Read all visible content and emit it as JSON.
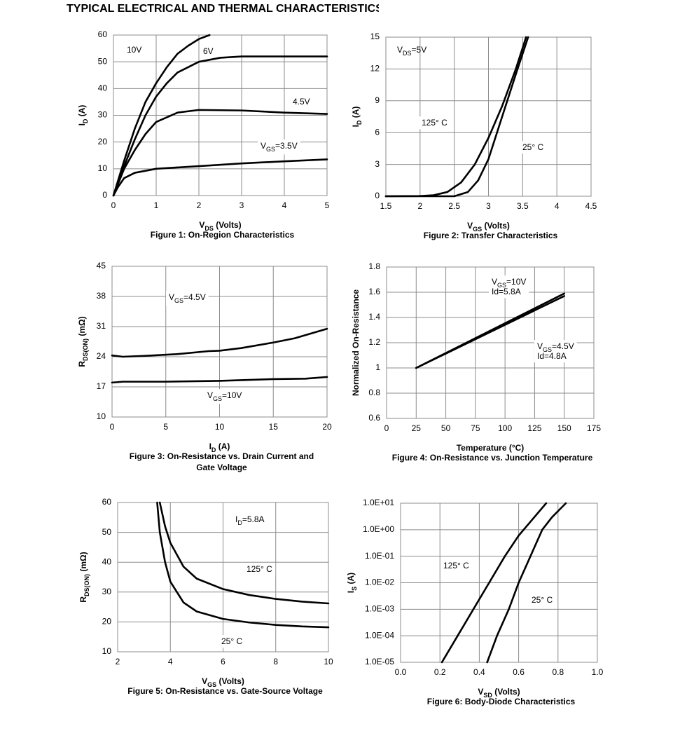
{
  "page_title": "TYPICAL ELECTRICAL AND THERMAL CHARACTERISTICS",
  "chart_data": [
    {
      "type": "line",
      "caption": [
        "Figure 1: On-Region Characteristics"
      ],
      "xlabel": [
        {
          "text": "V"
        },
        {
          "text": "DS",
          "sub": true
        },
        {
          "text": " (Volts)"
        }
      ],
      "ylabel": [
        {
          "text": "I"
        },
        {
          "text": "D",
          "sub": true
        },
        {
          "text": " (A)"
        }
      ],
      "xlim": [
        0,
        5
      ],
      "xticks": [
        0,
        1,
        2,
        3,
        4,
        5
      ],
      "ylim": [
        0,
        60
      ],
      "yticks": [
        0,
        10,
        20,
        30,
        40,
        50,
        60
      ],
      "grid": true,
      "series": [
        {
          "color": "#000000",
          "x": [
            0,
            0.25,
            0.5,
            0.75,
            1,
            1.25,
            1.5,
            1.75,
            2,
            2.25
          ],
          "values": [
            0,
            13,
            25,
            35,
            42,
            48,
            53,
            56,
            58.5,
            60
          ]
        },
        {
          "color": "#000000",
          "x": [
            0,
            0.25,
            0.5,
            0.75,
            1,
            1.25,
            1.5,
            2,
            2.5,
            3,
            4,
            5
          ],
          "values": [
            0,
            11,
            21,
            30,
            37,
            42,
            46,
            50,
            51.5,
            52,
            52,
            52
          ]
        },
        {
          "color": "#000000",
          "x": [
            0,
            0.25,
            0.5,
            0.75,
            1,
            1.5,
            2,
            3,
            4,
            5
          ],
          "values": [
            0,
            10,
            17,
            23,
            27.5,
            31,
            32,
            31.8,
            31,
            30.5
          ]
        },
        {
          "color": "#000000",
          "x": [
            0,
            0.1,
            0.25,
            0.5,
            1,
            2,
            3,
            4,
            5
          ],
          "values": [
            0,
            3,
            6.5,
            8.5,
            10,
            11,
            12,
            12.8,
            13.5
          ]
        }
      ],
      "annotations": [
        {
          "lines": [
            [
              {
                "text": "10V"
              }
            ]
          ]
        },
        {
          "lines": [
            [
              {
                "text": "6V"
              }
            ]
          ]
        },
        {
          "lines": [
            [
              {
                "text": "4.5V"
              }
            ]
          ]
        },
        {
          "lines": [
            [
              {
                "text": "V"
              },
              {
                "text": "GS",
                "sub": true
              },
              {
                "text": "=3.5V"
              }
            ]
          ]
        }
      ]
    },
    {
      "type": "line",
      "caption": [
        "Figure 2: Transfer Characteristics"
      ],
      "xlabel": [
        {
          "text": "V"
        },
        {
          "text": "GS",
          "sub": true
        },
        {
          "text": " (Volts)"
        }
      ],
      "ylabel": [
        {
          "text": "I"
        },
        {
          "text": "D",
          "sub": true
        },
        {
          "text": " (A)"
        }
      ],
      "xlim": [
        1.5,
        4.5
      ],
      "xticks": [
        1.5,
        2,
        2.5,
        3,
        3.5,
        4,
        4.5
      ],
      "ylim": [
        0,
        15
      ],
      "yticks": [
        0,
        3,
        6,
        9,
        12,
        15
      ],
      "grid": true,
      "series": [
        {
          "color": "#000000",
          "x": [
            1.5,
            2,
            2.2,
            2.4,
            2.6,
            2.8,
            3,
            3.2,
            3.4,
            3.55
          ],
          "values": [
            0,
            0.02,
            0.1,
            0.4,
            1.3,
            3,
            5.5,
            8.5,
            12,
            15
          ]
        },
        {
          "color": "#000000",
          "x": [
            1.5,
            2.5,
            2.7,
            2.85,
            3,
            3.2,
            3.4,
            3.58
          ],
          "values": [
            0,
            0,
            0.4,
            1.5,
            3.5,
            7.5,
            11.5,
            15
          ]
        }
      ],
      "annotations": [
        {
          "lines": [
            [
              {
                "text": "V"
              },
              {
                "text": "DS",
                "sub": true
              },
              {
                "text": "=5V"
              }
            ]
          ]
        },
        {
          "lines": [
            [
              {
                "text": "125° C"
              }
            ]
          ]
        },
        {
          "lines": [
            [
              {
                "text": "25° C"
              }
            ]
          ]
        }
      ]
    },
    {
      "type": "line",
      "caption": [
        "Figure 3: On-Resistance vs. Drain Current and",
        "Gate Voltage"
      ],
      "xlabel": [
        {
          "text": "I"
        },
        {
          "text": "D",
          "sub": true
        },
        {
          "text": " (A)"
        }
      ],
      "ylabel": [
        {
          "text": "R"
        },
        {
          "text": "DS(ON)",
          "sub": true
        },
        {
          "text": " (mΩ)"
        }
      ],
      "xlim": [
        0,
        20
      ],
      "xticks": [
        0,
        5,
        10,
        15,
        20
      ],
      "ylim": [
        10,
        45
      ],
      "yticks": [
        10,
        17,
        24,
        31,
        38,
        45
      ],
      "grid": true,
      "series": [
        {
          "color": "#000000",
          "x": [
            0,
            1,
            3,
            6,
            9,
            10,
            12,
            15,
            17,
            20
          ],
          "values": [
            24.3,
            24,
            24.2,
            24.6,
            25.3,
            25.4,
            26,
            27.3,
            28.3,
            30.5
          ]
        },
        {
          "color": "#000000",
          "x": [
            0,
            1,
            5,
            10,
            15,
            18,
            20
          ],
          "values": [
            18,
            18.2,
            18.2,
            18.4,
            18.8,
            18.9,
            19.3
          ]
        }
      ],
      "annotations": [
        {
          "lines": [
            [
              {
                "text": "V"
              },
              {
                "text": "GS",
                "sub": true
              },
              {
                "text": "=4.5V"
              }
            ]
          ]
        },
        {
          "lines": [
            [
              {
                "text": "V"
              },
              {
                "text": "GS",
                "sub": true
              },
              {
                "text": "=10V"
              }
            ]
          ]
        }
      ]
    },
    {
      "type": "line",
      "caption": [
        "Figure 4: On-Resistance vs. Junction Temperature"
      ],
      "xlabel": [
        {
          "text": "Temperature (°C)"
        }
      ],
      "ylabel": [
        {
          "text": "Normalized On-Resistance"
        }
      ],
      "xlim": [
        0,
        175
      ],
      "xticks": [
        0,
        25,
        50,
        75,
        100,
        125,
        150,
        175
      ],
      "ylim": [
        0.6,
        1.8
      ],
      "yticks": [
        0.6,
        0.8,
        1,
        1.2,
        1.4,
        1.6,
        1.8
      ],
      "grid": true,
      "series": [
        {
          "color": "#000000",
          "x": [
            25,
            150
          ],
          "values": [
            1,
            1.59
          ]
        },
        {
          "color": "#000000",
          "x": [
            25,
            150
          ],
          "values": [
            1,
            1.57
          ]
        }
      ],
      "annotations": [
        {
          "lines": [
            [
              {
                "text": "V"
              },
              {
                "text": "GS",
                "sub": true
              },
              {
                "text": "=10V"
              }
            ],
            [
              {
                "text": "Id=5.8A"
              }
            ]
          ]
        },
        {
          "lines": [
            [
              {
                "text": "V"
              },
              {
                "text": "GS",
                "sub": true
              },
              {
                "text": "=4.5V"
              }
            ],
            [
              {
                "text": "Id=4.8A"
              }
            ]
          ]
        }
      ]
    },
    {
      "type": "line",
      "caption": [
        "Figure 5: On-Resistance vs. Gate-Source Voltage"
      ],
      "xlabel": [
        {
          "text": "V"
        },
        {
          "text": "GS",
          "sub": true
        },
        {
          "text": " (Volts)"
        }
      ],
      "ylabel": [
        {
          "text": "R"
        },
        {
          "text": "DS(ON)",
          "sub": true
        },
        {
          "text": " (mΩ)"
        }
      ],
      "xlim": [
        2,
        10
      ],
      "xticks": [
        2,
        4,
        6,
        8,
        10
      ],
      "ylim": [
        10,
        60
      ],
      "yticks": [
        10,
        20,
        30,
        40,
        50,
        60
      ],
      "grid": true,
      "series": [
        {
          "color": "#000000",
          "x": [
            3.6,
            3.8,
            4,
            4.5,
            5,
            6,
            7,
            8,
            9,
            10
          ],
          "values": [
            60,
            52,
            46.5,
            38.5,
            34.5,
            31,
            29,
            27.7,
            26.8,
            26.2
          ]
        },
        {
          "color": "#000000",
          "x": [
            3.5,
            3.6,
            3.8,
            4,
            4.5,
            5,
            6,
            7,
            8,
            9,
            10
          ],
          "values": [
            60,
            50,
            40,
            33.5,
            26.5,
            23.5,
            21,
            19.8,
            19,
            18.5,
            18.2
          ]
        }
      ],
      "annotations": [
        {
          "lines": [
            [
              {
                "text": "I"
              },
              {
                "text": "D",
                "sub": true
              },
              {
                "text": "=5.8A"
              }
            ]
          ]
        },
        {
          "lines": [
            [
              {
                "text": "125° C"
              }
            ]
          ]
        },
        {
          "lines": [
            [
              {
                "text": "25° C"
              }
            ]
          ]
        }
      ]
    },
    {
      "type": "line",
      "caption": [
        "Figure 6: Body-Diode Characteristics"
      ],
      "xlabel": [
        {
          "text": "V"
        },
        {
          "text": "SD",
          "sub": true
        },
        {
          "text": " (Volts)"
        }
      ],
      "ylabel": [
        {
          "text": "I"
        },
        {
          "text": "S",
          "sub": true
        },
        {
          "text": " (A)"
        }
      ],
      "xlim": [
        0,
        1
      ],
      "xticks": [
        {
          "value": 0,
          "label": "0.0"
        },
        0.2,
        0.4,
        0.6,
        0.8,
        {
          "value": 1,
          "label": "1.0"
        }
      ],
      "ylim": [
        1e-05,
        10
      ],
      "ylog": true,
      "yticks": [
        {
          "value": 1e-05,
          "label": "1.0E-05"
        },
        {
          "value": 0.0001,
          "label": "1.0E-04"
        },
        {
          "value": 0.001,
          "label": "1.0E-03"
        },
        {
          "value": 0.01,
          "label": "1.0E-02"
        },
        {
          "value": 0.1,
          "label": "1.0E-01"
        },
        {
          "value": 1,
          "label": "1.0E+00"
        },
        {
          "value": 10,
          "label": "1.0E+01"
        }
      ],
      "grid": true,
      "series": [
        {
          "color": "#000000",
          "x": [
            0.21,
            0.29,
            0.37,
            0.45,
            0.53,
            0.6,
            0.66,
            0.74
          ],
          "values": [
            1e-05,
            0.0001,
            0.001,
            0.01,
            0.1,
            0.6,
            2,
            10
          ]
        },
        {
          "color": "#000000",
          "x": [
            0.44,
            0.49,
            0.55,
            0.6,
            0.66,
            0.72,
            0.77,
            0.84
          ],
          "values": [
            1e-05,
            0.0001,
            0.001,
            0.01,
            0.1,
            1,
            3,
            10
          ]
        }
      ],
      "annotations": [
        {
          "lines": [
            [
              {
                "text": "125° C"
              }
            ]
          ]
        },
        {
          "lines": [
            [
              {
                "text": "25° C"
              }
            ]
          ]
        }
      ]
    }
  ]
}
